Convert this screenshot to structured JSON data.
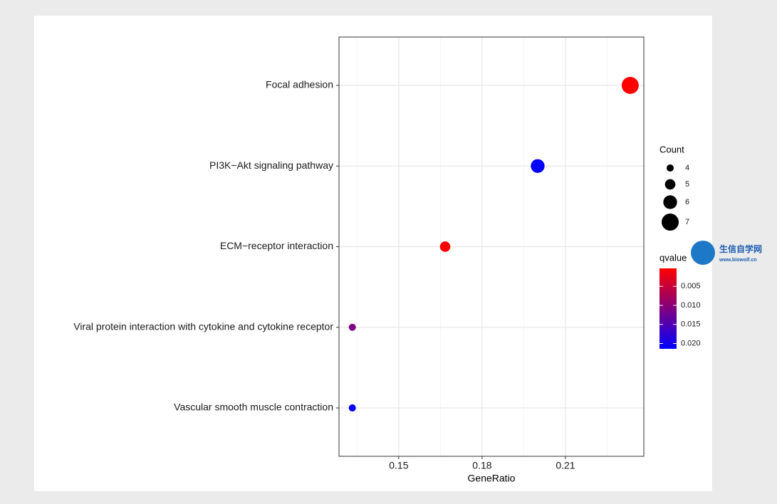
{
  "chart_data": {
    "type": "dot",
    "x_label": "GeneRatio",
    "categories": [
      "Focal adhesion",
      "PI3K−Akt signaling pathway",
      "ECM−receptor interaction",
      "Viral protein interaction with cytokine and cytokine receptor",
      "Vascular smooth muscle contraction"
    ],
    "values": [
      0.2333,
      0.2,
      0.1667,
      0.1333,
      0.1333
    ],
    "counts": [
      7,
      6,
      5,
      4,
      4
    ],
    "qvalues": [
      0.0003,
      0.0214,
      0.0005,
      0.011,
      0.0214
    ],
    "xlim": [
      0.1285,
      0.2382
    ],
    "xticks": [
      0.15,
      0.18,
      0.21
    ],
    "xminorticks": [
      0.135,
      0.165,
      0.195,
      0.225
    ],
    "grid": true,
    "size_legend": {
      "title": "Count",
      "values": [
        4,
        5,
        6,
        7
      ]
    },
    "color_legend": {
      "title": "qvalue",
      "low_color": "#ff0000",
      "high_color": "#0000ff",
      "lim": [
        0.0003,
        0.0214
      ],
      "ticks": [
        0.005,
        {
          "value": 0.01,
          "label": "0.010"
        },
        0.015,
        {
          "value": 0.02,
          "label": "0.020"
        }
      ]
    }
  },
  "watermark": {
    "title": "生信自学网",
    "url": "www.biowolf.cn"
  }
}
